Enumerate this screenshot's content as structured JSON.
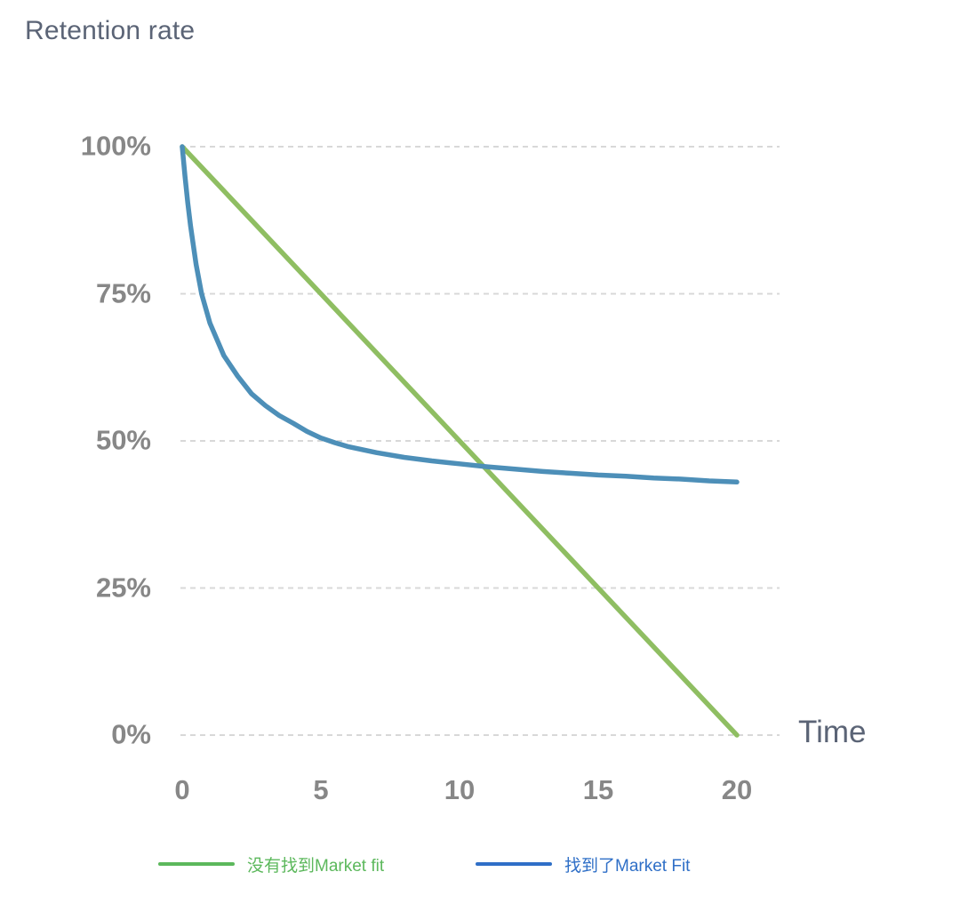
{
  "chart_data": {
    "type": "line",
    "title": "Retention rate",
    "xlabel": "Time",
    "ylabel": "Retention rate",
    "xlim": [
      0,
      20
    ],
    "ylim": [
      0,
      100
    ],
    "grid": "horizontal-dashed",
    "gridline_color": "#d8d8d8",
    "axis_label_color": "#878787",
    "title_color": "#5b6476",
    "legend_position": "bottom",
    "x_ticks": [
      {
        "label": "0",
        "value": 0
      },
      {
        "label": "5",
        "value": 5
      },
      {
        "label": "10",
        "value": 10
      },
      {
        "label": "15",
        "value": 15
      },
      {
        "label": "20",
        "value": 20
      }
    ],
    "y_ticks": [
      {
        "label": "0%",
        "value": 0
      },
      {
        "label": "25%",
        "value": 25
      },
      {
        "label": "50%",
        "value": 50
      },
      {
        "label": "75%",
        "value": 75
      },
      {
        "label": "100%",
        "value": 100
      }
    ],
    "series": [
      {
        "name": "没有找到Market fit",
        "line_color": "#8fbe62",
        "legend_color": "#5cb85c",
        "points": [
          [
            0,
            100
          ],
          [
            20,
            0
          ]
        ]
      },
      {
        "name": "找到了Market Fit",
        "line_color": "#4d8fb8",
        "legend_color": "#2f6fc7",
        "points": [
          [
            0,
            100
          ],
          [
            0.1,
            95
          ],
          [
            0.2,
            90.5
          ],
          [
            0.3,
            86.5
          ],
          [
            0.5,
            80
          ],
          [
            0.7,
            75
          ],
          [
            1,
            70
          ],
          [
            1.5,
            64.5
          ],
          [
            2,
            61
          ],
          [
            2.5,
            58
          ],
          [
            3,
            56
          ],
          [
            3.5,
            54.3
          ],
          [
            4,
            53
          ],
          [
            4.5,
            51.6
          ],
          [
            5,
            50.5
          ],
          [
            5.5,
            49.7
          ],
          [
            6,
            49
          ],
          [
            7,
            48
          ],
          [
            8,
            47.2
          ],
          [
            9,
            46.6
          ],
          [
            10,
            46.1
          ],
          [
            11,
            45.6
          ],
          [
            12,
            45.2
          ],
          [
            13,
            44.8
          ],
          [
            14,
            44.5
          ],
          [
            15,
            44.2
          ],
          [
            16,
            44
          ],
          [
            17,
            43.7
          ],
          [
            18,
            43.5
          ],
          [
            19,
            43.2
          ],
          [
            20,
            43
          ]
        ]
      }
    ]
  }
}
